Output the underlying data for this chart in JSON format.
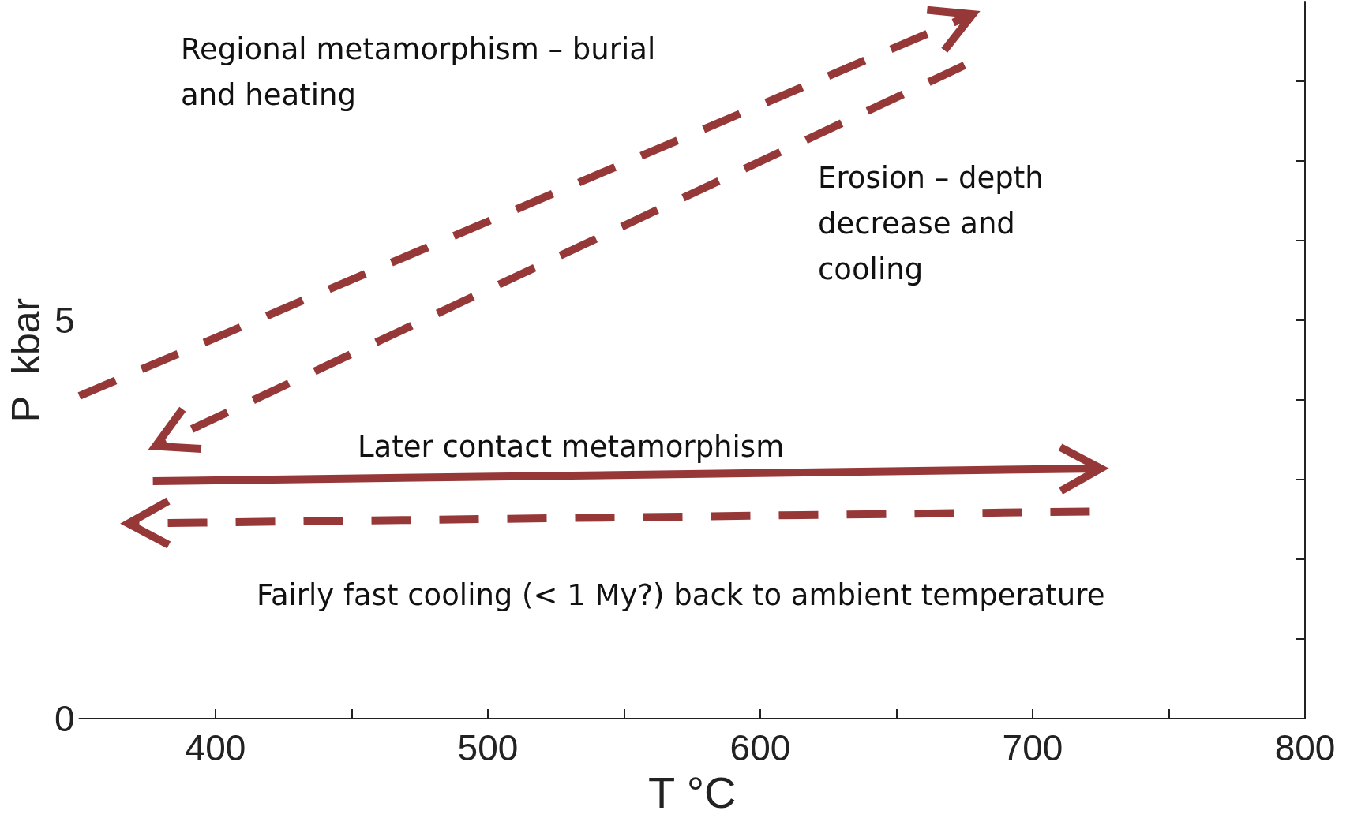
{
  "chart_data": {
    "type": "line",
    "xlabel": "T °C",
    "ylabel": "P  kbar",
    "xlim": [
      350,
      800
    ],
    "ylim": [
      0,
      9
    ],
    "xticks": [
      400,
      {
        "value": 450,
        "label": null
      },
      500,
      {
        "value": 550,
        "label": null
      },
      600,
      {
        "value": 650,
        "label": null
      },
      700,
      {
        "value": 750,
        "label": null
      },
      800
    ],
    "yticks": [
      0,
      {
        "value": 1,
        "label": null
      },
      {
        "value": 2,
        "label": null
      },
      {
        "value": 3,
        "label": null
      },
      {
        "value": 4,
        "label": null
      },
      5,
      {
        "value": 6,
        "label": null
      },
      {
        "value": 7,
        "label": null
      },
      {
        "value": 8,
        "label": null
      }
    ],
    "grid": false,
    "series": [
      {
        "color": "#973838",
        "line_style": "dashed",
        "x": [
          350,
          678
        ],
        "values": [
          4.05,
          8.84
        ]
      },
      {
        "color": "#973838",
        "line_style": "dashed",
        "x": [
          675,
          378
        ],
        "values": [
          8.2,
          3.42
        ]
      },
      {
        "color": "#973838",
        "line_style": "solid",
        "x": [
          377,
          725
        ],
        "values": [
          2.98,
          3.14
        ]
      },
      {
        "color": "#973838",
        "line_style": "dashed",
        "x": [
          721,
          368
        ],
        "values": [
          2.6,
          2.45
        ]
      }
    ],
    "annotations": [
      "Regional metamorphism – burial\nand heating",
      "Erosion – depth\ndecrease and\ncooling",
      "Later contact metamorphism",
      "Fairly fast cooling (< 1 My?) back to ambient temperature"
    ]
  }
}
